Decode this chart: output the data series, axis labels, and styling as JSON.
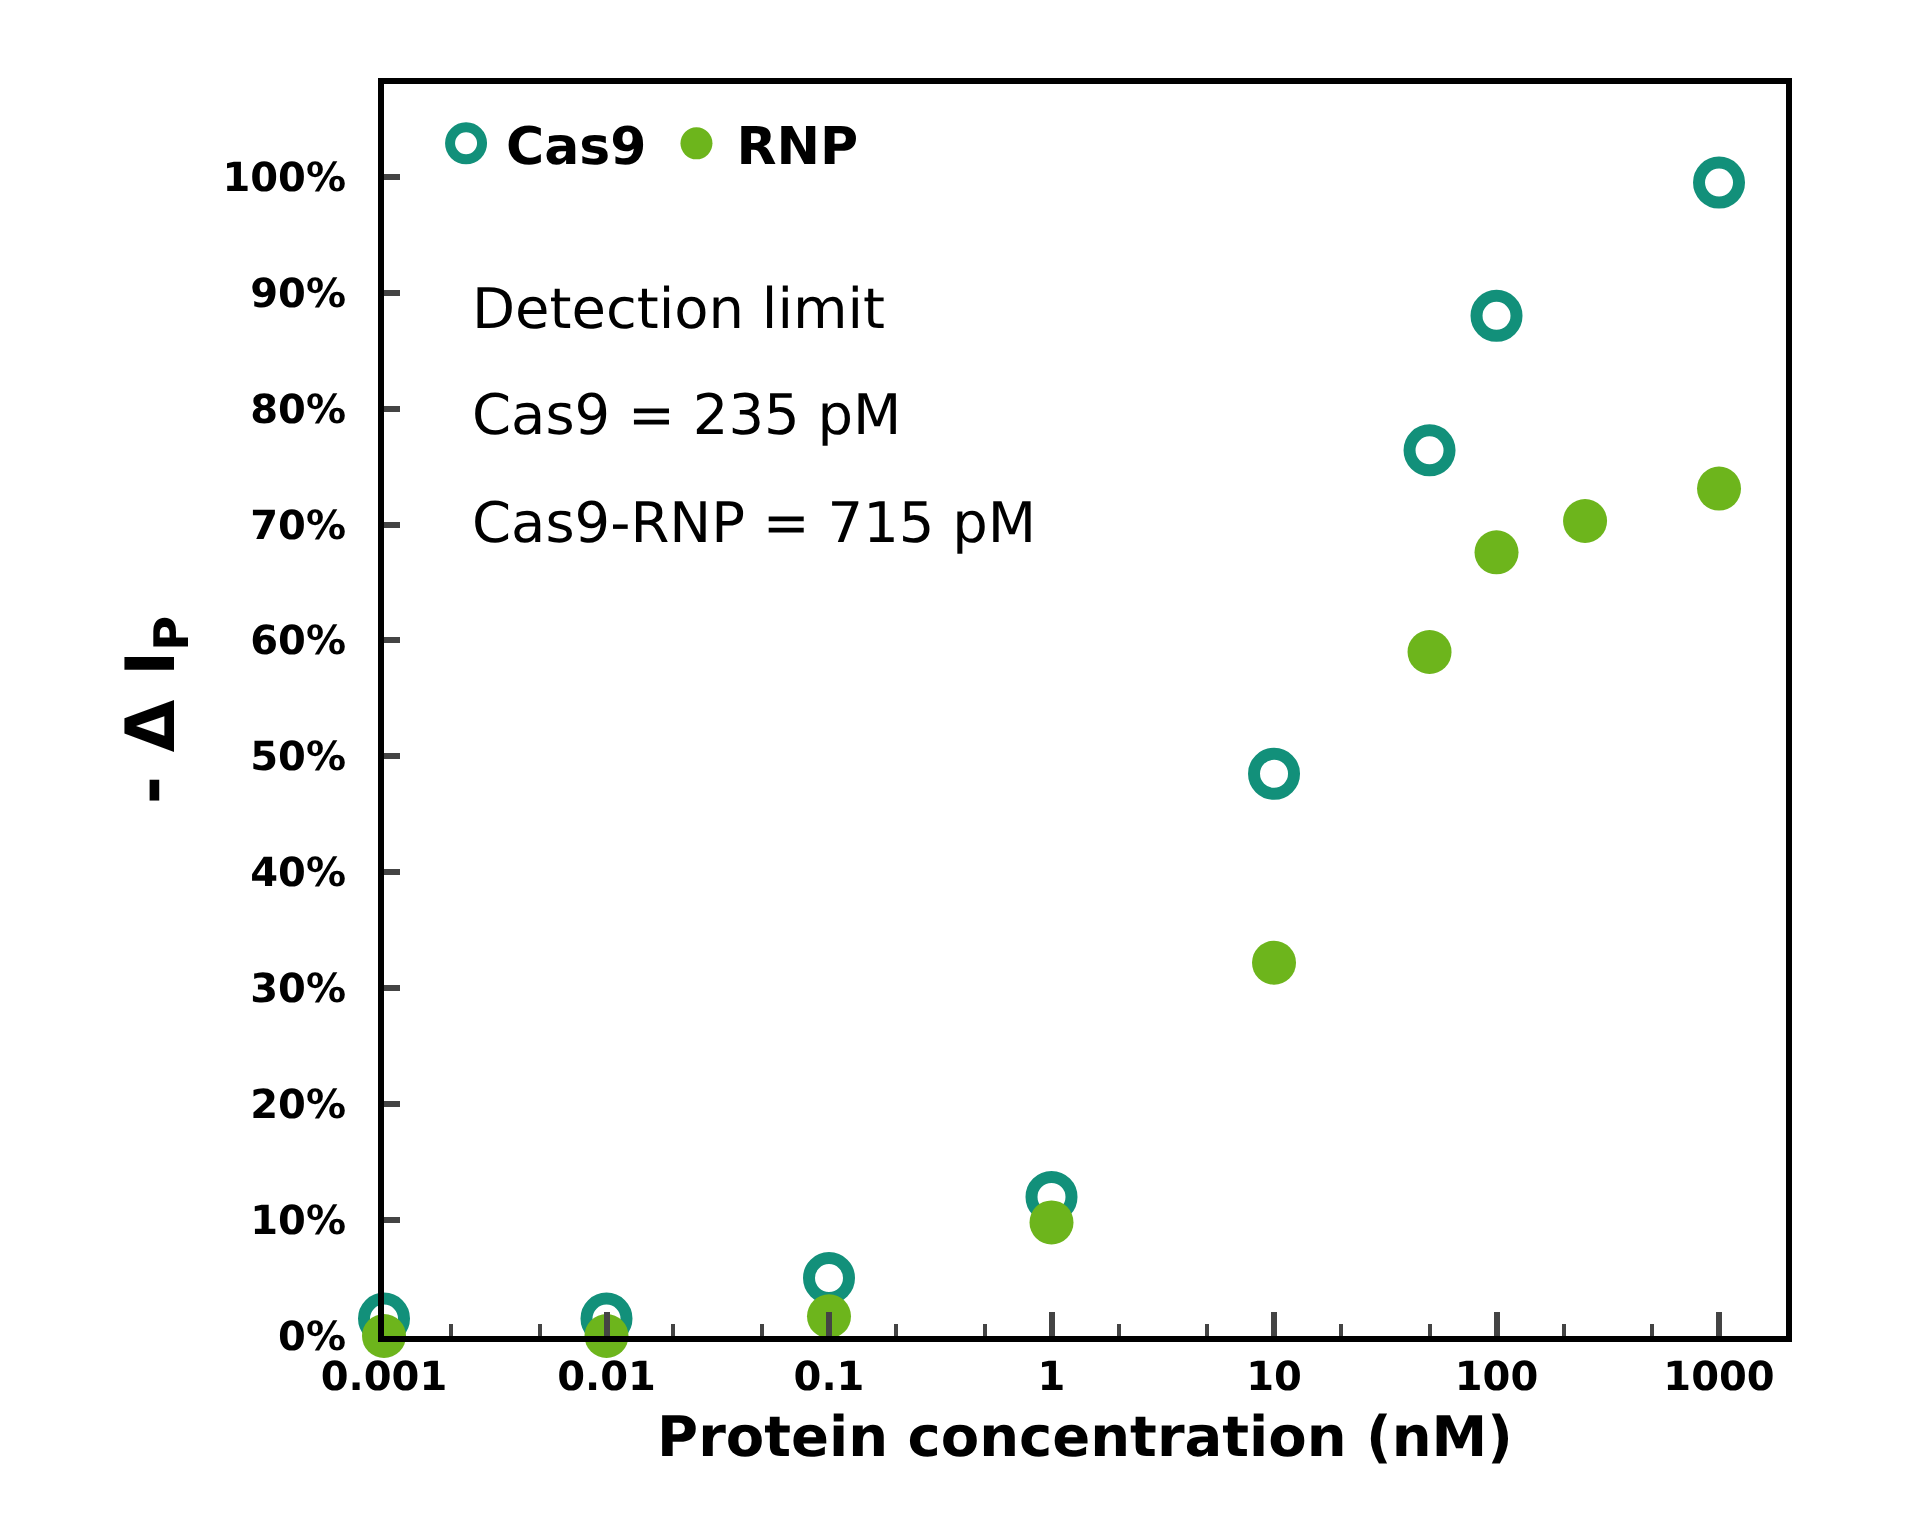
{
  "chart_data": {
    "type": "scatter",
    "xlabel": "Protein concentration (nM)",
    "ylabel": "- Δ I$_{P}$",
    "log": "x",
    "xlim": [
      0.001,
      2000
    ],
    "xticks": [
      0.001,
      0.01,
      0.1,
      1,
      10,
      100,
      1000
    ],
    "ylim": [
      0,
      108
    ],
    "yticks": [
      {
        "value": 0,
        "label": "0%"
      },
      {
        "value": 10,
        "label": "10%"
      },
      {
        "value": 20,
        "label": "20%"
      },
      {
        "value": 30,
        "label": "30%"
      },
      {
        "value": 40,
        "label": "40%"
      },
      {
        "value": 50,
        "label": "50%"
      },
      {
        "value": 60,
        "label": "60%"
      },
      {
        "value": 70,
        "label": "70%"
      },
      {
        "value": 80,
        "label": "80%"
      },
      {
        "value": 90,
        "label": "90%"
      },
      {
        "value": 100,
        "label": "100%"
      }
    ],
    "legend": "top left",
    "series": [
      {
        "name": "Cas9",
        "color": "#12907a",
        "marker": "circle-open",
        "x": [
          0.001,
          0.01,
          0.1,
          1,
          10,
          50,
          100,
          1000
        ],
        "values": [
          1.5,
          1.5,
          5,
          12,
          48.5,
          76.4,
          88,
          99.5
        ]
      },
      {
        "name": "RNP",
        "color": "#6db51c",
        "marker": "circle",
        "x": [
          0.001,
          0.01,
          0.1,
          1,
          10,
          50,
          100,
          250,
          1000
        ],
        "values": [
          0,
          0,
          1.7,
          9.8,
          32.2,
          59,
          67.6,
          70.3,
          73.1
        ]
      }
    ],
    "annotations": [
      "Detection limit",
      "Cas9 = 235 pM",
      "Cas9-RNP = 715 pM"
    ]
  }
}
